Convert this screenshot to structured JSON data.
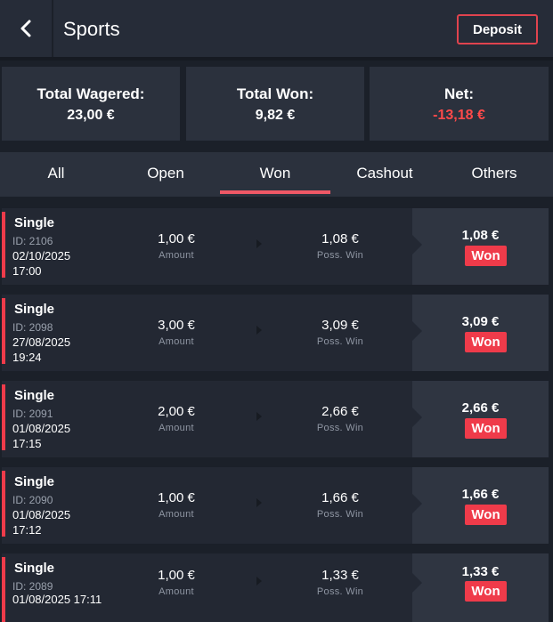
{
  "header": {
    "title": "Sports",
    "deposit_label": "Deposit"
  },
  "summary": {
    "wagered": {
      "label": "Total Wagered:",
      "value": "23,00 €"
    },
    "won": {
      "label": "Total Won:",
      "value": "9,82 €"
    },
    "net": {
      "label": "Net:",
      "value": "-13,18 €"
    }
  },
  "tabs": [
    {
      "label": "All"
    },
    {
      "label": "Open"
    },
    {
      "label": "Won"
    },
    {
      "label": "Cashout"
    },
    {
      "label": "Others"
    }
  ],
  "active_tab": "Won",
  "bets": [
    {
      "type": "Single",
      "id": "ID: 2106",
      "datetime": "02/10/2025\n17:00",
      "amount": "1,00 €",
      "amount_label": "Amount",
      "poss_win": "1,08 €",
      "poss_win_label": "Poss. Win",
      "result_value": "1,08 €",
      "status": "Won"
    },
    {
      "type": "Single",
      "id": "ID: 2098",
      "datetime": "27/08/2025\n19:24",
      "amount": "3,00 €",
      "amount_label": "Amount",
      "poss_win": "3,09 €",
      "poss_win_label": "Poss. Win",
      "result_value": "3,09 €",
      "status": "Won"
    },
    {
      "type": "Single",
      "id": "ID: 2091",
      "datetime": "01/08/2025\n17:15",
      "amount": "2,00 €",
      "amount_label": "Amount",
      "poss_win": "2,66 €",
      "poss_win_label": "Poss. Win",
      "result_value": "2,66 €",
      "status": "Won"
    },
    {
      "type": "Single",
      "id": "ID: 2090",
      "datetime": "01/08/2025\n17:12",
      "amount": "1,00 €",
      "amount_label": "Amount",
      "poss_win": "1,66 €",
      "poss_win_label": "Poss. Win",
      "result_value": "1,66 €",
      "status": "Won"
    },
    {
      "type": "Single",
      "id": "ID: 2089",
      "datetime": "01/08/2025 17:11",
      "amount": "1,00 €",
      "amount_label": "Amount",
      "poss_win": "1,33 €",
      "poss_win_label": "Poss. Win",
      "result_value": "1,33 €",
      "status": "Won"
    }
  ],
  "colors": {
    "accent": "#ef3b4a",
    "negative": "#ff4a4a",
    "background": "#1b2029",
    "panel": "#2b313d"
  },
  "icons": {
    "back": "chevron-left-icon"
  }
}
